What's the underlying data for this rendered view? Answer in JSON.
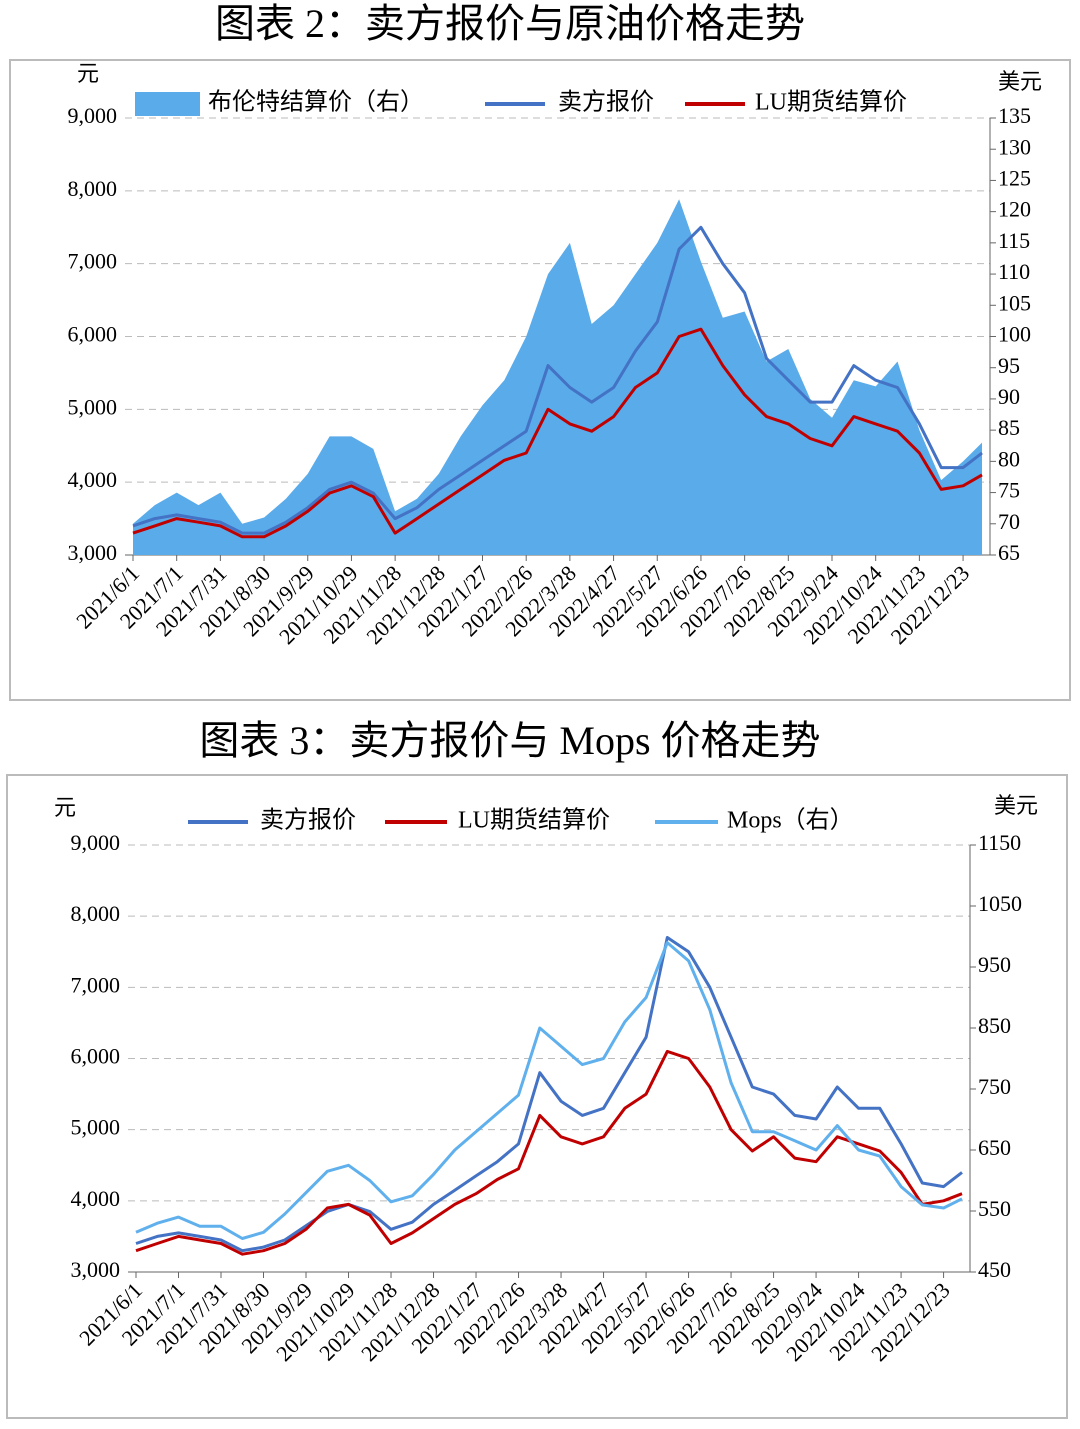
{
  "chart_data": [
    {
      "type": "line",
      "title": "图表 2：卖方报价与原油价格走势",
      "y_label": "元",
      "y2_label": "美元",
      "x": [
        "2021/6/1",
        "2021/6/16",
        "2021/7/1",
        "2021/7/16",
        "2021/7/31",
        "2021/8/15",
        "2021/8/30",
        "2021/9/14",
        "2021/9/29",
        "2021/10/14",
        "2021/10/29",
        "2021/11/13",
        "2021/11/28",
        "2021/12/13",
        "2021/12/28",
        "2022/1/12",
        "2022/1/27",
        "2022/2/11",
        "2022/2/26",
        "2022/3/13",
        "2022/3/28",
        "2022/4/12",
        "2022/4/27",
        "2022/5/12",
        "2022/5/27",
        "2022/6/11",
        "2022/6/26",
        "2022/7/11",
        "2022/7/26",
        "2022/8/10",
        "2022/8/25",
        "2022/9/9",
        "2022/9/24",
        "2022/10/9",
        "2022/10/24",
        "2022/11/8",
        "2022/11/23",
        "2022/12/8",
        "2022/12/23",
        "2023/1/5"
      ],
      "xticks": [
        "2021/6/1",
        "2021/7/1",
        "2021/7/31",
        "2021/8/30",
        "2021/9/29",
        "2021/10/29",
        "2021/11/28",
        "2021/12/28",
        "2022/1/27",
        "2022/2/26",
        "2022/3/28",
        "2022/4/27",
        "2022/5/27",
        "2022/6/26",
        "2022/7/26",
        "2022/8/25",
        "2022/9/24",
        "2022/10/24",
        "2022/11/23",
        "2022/12/23"
      ],
      "series": [
        {
          "name": "布伦特结算价（右）",
          "type": "area",
          "axis": "y2",
          "color": "#5aabea",
          "values": [
            70,
            73,
            75,
            73,
            75,
            70,
            71,
            74,
            78,
            84,
            84,
            82,
            72,
            74,
            78,
            84,
            89,
            93,
            100,
            110,
            115,
            102,
            105,
            110,
            115,
            122,
            112,
            103,
            104,
            96,
            98,
            90,
            87,
            93,
            92,
            96,
            85,
            77,
            80,
            83
          ]
        },
        {
          "name": "卖方报价",
          "color": "#4472c4",
          "values": [
            3400,
            3500,
            3550,
            3500,
            3450,
            3300,
            3300,
            3450,
            3650,
            3900,
            4000,
            3850,
            3500,
            3650,
            3900,
            4100,
            4300,
            4500,
            4700,
            5600,
            5300,
            5100,
            5300,
            5800,
            6200,
            7200,
            7500,
            7000,
            6600,
            5700,
            5400,
            5100,
            5100,
            5600,
            5400,
            5300,
            4800,
            4200,
            4200,
            4400
          ]
        },
        {
          "name": "LU期货结算价",
          "color": "#c00000",
          "values": [
            3300,
            3400,
            3500,
            3450,
            3400,
            3250,
            3250,
            3400,
            3600,
            3850,
            3950,
            3800,
            3300,
            3500,
            3700,
            3900,
            4100,
            4300,
            4400,
            5000,
            4800,
            4700,
            4900,
            5300,
            5500,
            6000,
            6100,
            5600,
            5200,
            4900,
            4800,
            4600,
            4500,
            4900,
            4800,
            4700,
            4400,
            3900,
            3950,
            4100
          ]
        }
      ],
      "ylim": [
        3000,
        9000
      ],
      "yticks": [
        {
          "value": 3000,
          "label": "3,000"
        },
        {
          "value": 4000,
          "label": "4,000"
        },
        {
          "value": 5000,
          "label": "5,000"
        },
        {
          "value": 6000,
          "label": "6,000"
        },
        {
          "value": 7000,
          "label": "7,000"
        },
        {
          "value": 8000,
          "label": "8,000"
        },
        {
          "value": 9000,
          "label": "9,000"
        }
      ],
      "y2lim": [
        65,
        135
      ],
      "y2ticks": [
        65,
        70,
        75,
        80,
        85,
        90,
        95,
        100,
        105,
        110,
        115,
        120,
        125,
        130,
        135
      ],
      "grid": true,
      "legend": "top"
    },
    {
      "type": "line",
      "title": "图表 3：卖方报价与 Mops 价格走势",
      "y_label": "元",
      "y2_label": "美元",
      "x": [
        "2021/6/1",
        "2021/6/16",
        "2021/7/1",
        "2021/7/16",
        "2021/7/31",
        "2021/8/15",
        "2021/8/30",
        "2021/9/14",
        "2021/9/29",
        "2021/10/14",
        "2021/10/29",
        "2021/11/13",
        "2021/11/28",
        "2021/12/13",
        "2021/12/28",
        "2022/1/12",
        "2022/1/27",
        "2022/2/11",
        "2022/2/26",
        "2022/3/13",
        "2022/3/28",
        "2022/4/12",
        "2022/4/27",
        "2022/5/12",
        "2022/5/27",
        "2022/6/11",
        "2022/6/26",
        "2022/7/11",
        "2022/7/26",
        "2022/8/10",
        "2022/8/25",
        "2022/9/9",
        "2022/9/24",
        "2022/10/9",
        "2022/10/24",
        "2022/11/8",
        "2022/11/23",
        "2022/12/8",
        "2022/12/23",
        "2023/1/5"
      ],
      "xticks": [
        "2021/6/1",
        "2021/7/1",
        "2021/7/31",
        "2021/8/30",
        "2021/9/29",
        "2021/10/29",
        "2021/11/28",
        "2021/12/28",
        "2022/1/27",
        "2022/2/26",
        "2022/3/28",
        "2022/4/27",
        "2022/5/27",
        "2022/6/26",
        "2022/7/26",
        "2022/8/25",
        "2022/9/24",
        "2022/10/24",
        "2022/11/23",
        "2022/12/23"
      ],
      "series": [
        {
          "name": "卖方报价",
          "color": "#4472c4",
          "values": [
            3400,
            3500,
            3550,
            3500,
            3450,
            3300,
            3350,
            3450,
            3650,
            3850,
            3950,
            3850,
            3600,
            3700,
            3950,
            4150,
            4350,
            4550,
            4800,
            5800,
            5400,
            5200,
            5300,
            5800,
            6300,
            7700,
            7500,
            7000,
            6300,
            5600,
            5500,
            5200,
            5150,
            5600,
            5300,
            5300,
            4800,
            4250,
            4200,
            4400
          ]
        },
        {
          "name": "LU期货结算价",
          "color": "#c00000",
          "values": [
            3300,
            3400,
            3500,
            3450,
            3400,
            3250,
            3300,
            3400,
            3600,
            3900,
            3950,
            3800,
            3400,
            3550,
            3750,
            3950,
            4100,
            4300,
            4450,
            5200,
            4900,
            4800,
            4900,
            5300,
            5500,
            6100,
            6000,
            5600,
            5000,
            4700,
            4900,
            4600,
            4550,
            4900,
            4800,
            4700,
            4400,
            3950,
            4000,
            4100
          ]
        },
        {
          "name": "Mops（右）",
          "axis": "y2",
          "color": "#5fb0ec",
          "values": [
            515,
            530,
            540,
            525,
            525,
            505,
            515,
            545,
            580,
            615,
            625,
            600,
            565,
            575,
            610,
            650,
            680,
            710,
            740,
            850,
            820,
            790,
            800,
            860,
            900,
            990,
            960,
            880,
            760,
            680,
            680,
            665,
            650,
            690,
            650,
            640,
            590,
            560,
            555,
            570
          ]
        }
      ],
      "ylim": [
        3000,
        9000
      ],
      "yticks": [
        {
          "value": 3000,
          "label": "3,000"
        },
        {
          "value": 4000,
          "label": "4,000"
        },
        {
          "value": 5000,
          "label": "5,000"
        },
        {
          "value": 6000,
          "label": "6,000"
        },
        {
          "value": 7000,
          "label": "7,000"
        },
        {
          "value": 8000,
          "label": "8,000"
        },
        {
          "value": 9000,
          "label": "9,000"
        }
      ],
      "y2lim": [
        450,
        1150
      ],
      "y2ticks": [
        450,
        550,
        650,
        750,
        850,
        950,
        1050,
        1150
      ],
      "grid": true,
      "legend": "top"
    }
  ]
}
